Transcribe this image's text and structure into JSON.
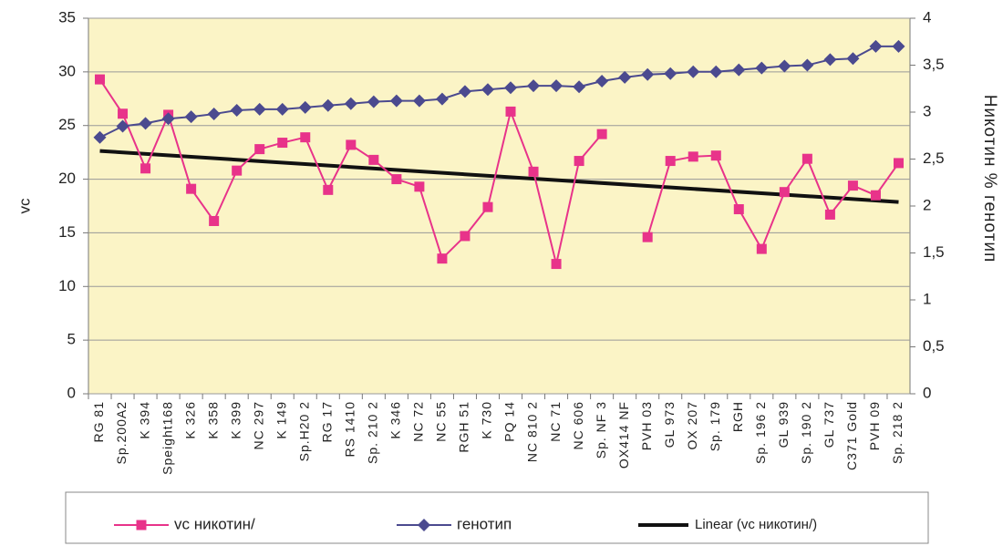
{
  "chart_data": {
    "type": "line",
    "categories": [
      "RG 81",
      "Sp.200A2",
      "K 394",
      "Speight168",
      "K 326",
      "K 358",
      "K 399",
      "NC 297",
      "K 149",
      "Sp.H20 2",
      "RG 17",
      "RS 1410",
      "Sp. 210 2",
      "K 346",
      "NC 72",
      "NC 55",
      "RGH 51",
      "K 730",
      "PQ 14",
      "NC 810 2",
      "NC 71",
      "NC 606",
      "Sp. NF 3",
      "OX414 NF",
      "PVH 03",
      "GL 973",
      "OX 207",
      "Sp. 179",
      "RGH",
      "Sp. 196 2",
      "GL 939",
      "Sp. 190 2",
      "GL 737",
      "C371 Gold",
      "PVH 09",
      "Sp. 218 2"
    ],
    "series": [
      {
        "name": "vc никотин/",
        "color": "#e8338a",
        "marker": "square",
        "values": [
          29.3,
          26.1,
          21.0,
          26.0,
          19.1,
          16.1,
          20.8,
          22.8,
          23.4,
          23.9,
          19.0,
          23.2,
          21.8,
          20.0,
          19.3,
          12.6,
          14.7,
          17.4,
          26.3,
          20.7,
          12.1,
          21.7,
          24.2,
          null,
          14.6,
          21.7,
          22.1,
          22.2,
          17.2,
          13.5,
          18.8,
          21.9,
          16.7,
          19.4,
          18.5,
          21.5
        ]
      },
      {
        "name": "генотип",
        "color": "#4b4a8f",
        "marker": "diamond",
        "axis": "y2",
        "values": [
          2.73,
          2.85,
          2.88,
          2.93,
          2.95,
          2.98,
          3.02,
          3.03,
          3.03,
          3.05,
          3.07,
          3.09,
          3.11,
          3.12,
          3.12,
          3.14,
          3.22,
          3.24,
          3.26,
          3.28,
          3.28,
          3.27,
          3.33,
          3.37,
          3.4,
          3.41,
          3.43,
          3.43,
          3.45,
          3.47,
          3.49,
          3.5,
          3.56,
          3.57,
          3.7,
          3.7
        ]
      }
    ],
    "trendline": {
      "name": "Linear (vc никотин/)",
      "color": "#111111"
    },
    "ylabel": "vc",
    "y2label": "Никотин % генотип",
    "ylim": [
      0,
      35
    ],
    "yticks": [
      0,
      5,
      10,
      15,
      20,
      25,
      30,
      35
    ],
    "y2lim": [
      0,
      4
    ],
    "y2ticks": [
      0,
      {
        "value": 0.5,
        "label": "0,5"
      },
      1,
      {
        "value": 1.5,
        "label": "1,5"
      },
      2,
      {
        "value": 2.5,
        "label": "2,5"
      },
      3,
      {
        "value": 3.5,
        "label": "3,5"
      },
      4
    ],
    "grid": true,
    "legend": "bottom"
  }
}
